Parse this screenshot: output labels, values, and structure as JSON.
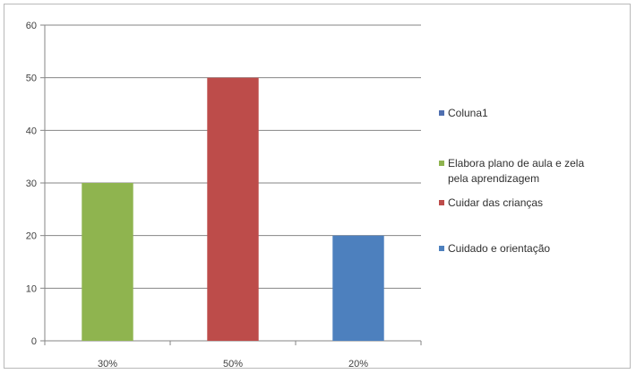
{
  "chart_data": {
    "type": "bar",
    "categories": [
      "30%",
      "50%",
      "20%"
    ],
    "series": [
      {
        "name": "Coluna1",
        "color": "#4f6fb0",
        "values": [
          null,
          null,
          null
        ]
      },
      {
        "name": "Elabora plano de aula e zela pela aprendizagem",
        "color": "#8fb44f",
        "values": [
          30,
          null,
          null
        ]
      },
      {
        "name": "Cuidar das crianças",
        "color": "#bd4c4a",
        "values": [
          null,
          50,
          null
        ]
      },
      {
        "name": "Cuidado e orientação",
        "color": "#4d80be",
        "values": [
          null,
          null,
          20
        ]
      }
    ],
    "legend_lines": [
      [
        "Coluna1"
      ],
      [
        "Elabora plano de aula e zela",
        "pela aprendizagem"
      ],
      [
        "Cuidar das crianças"
      ],
      [
        "Cuidado e orientação"
      ]
    ],
    "ylim": [
      0,
      60
    ],
    "yticks": [
      0,
      10,
      20,
      30,
      40,
      50,
      60
    ],
    "grid": true,
    "legend_position": "right",
    "title": "",
    "xlabel": "",
    "ylabel": ""
  }
}
